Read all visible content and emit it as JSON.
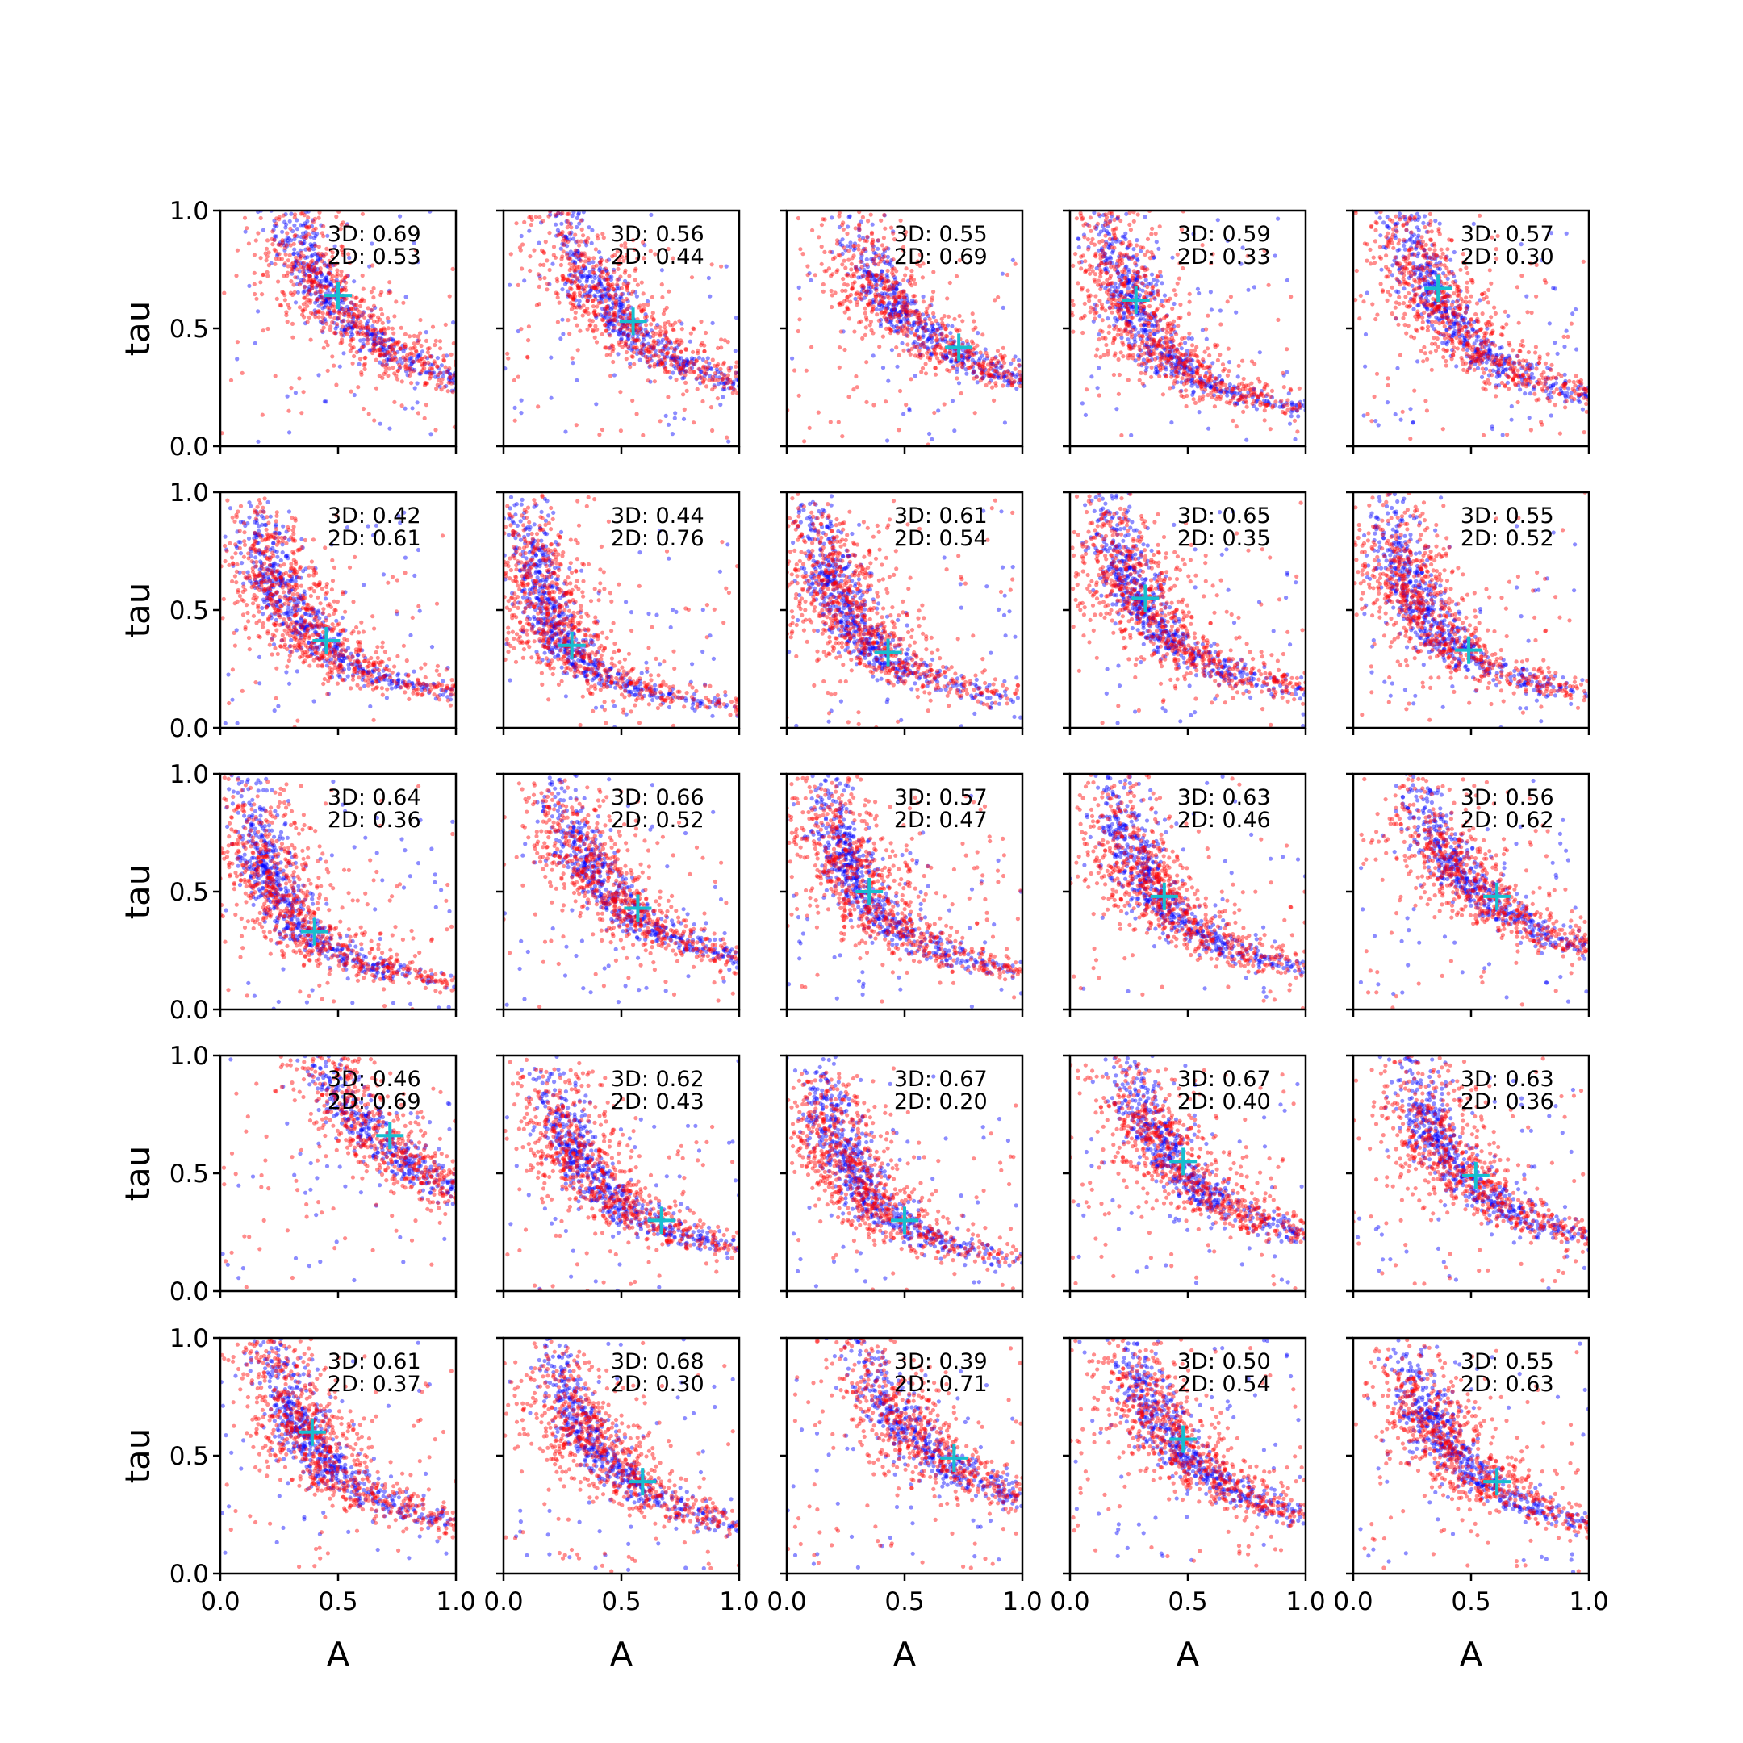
{
  "figure": {
    "grid": {
      "rows": 5,
      "cols": 5
    },
    "colors": {
      "series_3d": "#0000ff",
      "series_2d": "#ff0000",
      "marker": "#17becf",
      "axes": "#000000"
    }
  },
  "chart_data": {
    "type": "scatter",
    "xlabel": "A",
    "ylabel": "tau",
    "xlim": [
      0.0,
      1.0
    ],
    "ylim": [
      0.0,
      1.0
    ],
    "x_ticks": [
      "0.0",
      "0.5",
      "1.0"
    ],
    "y_ticks": [
      "0.0",
      "0.5",
      "1.0"
    ],
    "series_labels": [
      "3D",
      "2D"
    ],
    "marker_style": "+",
    "grid": false,
    "panels": [
      {
        "row": 0,
        "col": 0,
        "annot_3d": "3D: 0.69",
        "annot_2d": "2D: 0.53",
        "marker": [
          0.5,
          0.64
        ]
      },
      {
        "row": 0,
        "col": 1,
        "annot_3d": "3D: 0.56",
        "annot_2d": "2D: 0.44",
        "marker": [
          0.55,
          0.53
        ]
      },
      {
        "row": 0,
        "col": 2,
        "annot_3d": "3D: 0.55",
        "annot_2d": "2D: 0.69",
        "marker": [
          0.73,
          0.42
        ]
      },
      {
        "row": 0,
        "col": 3,
        "annot_3d": "3D: 0.59",
        "annot_2d": "2D: 0.33",
        "marker": [
          0.28,
          0.62
        ]
      },
      {
        "row": 0,
        "col": 4,
        "annot_3d": "3D: 0.57",
        "annot_2d": "2D: 0.30",
        "marker": [
          0.36,
          0.67
        ]
      },
      {
        "row": 1,
        "col": 0,
        "annot_3d": "3D: 0.42",
        "annot_2d": "2D: 0.61",
        "marker": [
          0.45,
          0.37
        ]
      },
      {
        "row": 1,
        "col": 1,
        "annot_3d": "3D: 0.44",
        "annot_2d": "2D: 0.76",
        "marker": [
          0.29,
          0.35
        ]
      },
      {
        "row": 1,
        "col": 2,
        "annot_3d": "3D: 0.61",
        "annot_2d": "2D: 0.54",
        "marker": [
          0.43,
          0.32
        ]
      },
      {
        "row": 1,
        "col": 3,
        "annot_3d": "3D: 0.65",
        "annot_2d": "2D: 0.35",
        "marker": [
          0.32,
          0.55
        ]
      },
      {
        "row": 1,
        "col": 4,
        "annot_3d": "3D: 0.55",
        "annot_2d": "2D: 0.52",
        "marker": [
          0.49,
          0.33
        ]
      },
      {
        "row": 2,
        "col": 0,
        "annot_3d": "3D: 0.64",
        "annot_2d": "2D: 0.36",
        "marker": [
          0.4,
          0.33
        ]
      },
      {
        "row": 2,
        "col": 1,
        "annot_3d": "3D: 0.66",
        "annot_2d": "2D: 0.52",
        "marker": [
          0.57,
          0.43
        ]
      },
      {
        "row": 2,
        "col": 2,
        "annot_3d": "3D: 0.57",
        "annot_2d": "2D: 0.47",
        "marker": [
          0.35,
          0.5
        ]
      },
      {
        "row": 2,
        "col": 3,
        "annot_3d": "3D: 0.63",
        "annot_2d": "2D: 0.46",
        "marker": [
          0.4,
          0.48
        ]
      },
      {
        "row": 2,
        "col": 4,
        "annot_3d": "3D: 0.56",
        "annot_2d": "2D: 0.62",
        "marker": [
          0.61,
          0.48
        ]
      },
      {
        "row": 3,
        "col": 0,
        "annot_3d": "3D: 0.46",
        "annot_2d": "2D: 0.69",
        "marker": [
          0.72,
          0.66
        ]
      },
      {
        "row": 3,
        "col": 1,
        "annot_3d": "3D: 0.62",
        "annot_2d": "2D: 0.43",
        "marker": [
          0.67,
          0.3
        ]
      },
      {
        "row": 3,
        "col": 2,
        "annot_3d": "3D: 0.67",
        "annot_2d": "2D: 0.20",
        "marker": [
          0.5,
          0.3
        ]
      },
      {
        "row": 3,
        "col": 3,
        "annot_3d": "3D: 0.67",
        "annot_2d": "2D: 0.40",
        "marker": [
          0.48,
          0.55
        ]
      },
      {
        "row": 3,
        "col": 4,
        "annot_3d": "3D: 0.63",
        "annot_2d": "2D: 0.36",
        "marker": [
          0.52,
          0.49
        ]
      },
      {
        "row": 4,
        "col": 0,
        "annot_3d": "3D: 0.61",
        "annot_2d": "2D: 0.37",
        "marker": [
          0.39,
          0.6
        ]
      },
      {
        "row": 4,
        "col": 1,
        "annot_3d": "3D: 0.68",
        "annot_2d": "2D: 0.30",
        "marker": [
          0.59,
          0.39
        ]
      },
      {
        "row": 4,
        "col": 2,
        "annot_3d": "3D: 0.39",
        "annot_2d": "2D: 0.71",
        "marker": [
          0.71,
          0.49
        ]
      },
      {
        "row": 4,
        "col": 3,
        "annot_3d": "3D: 0.50",
        "annot_2d": "2D: 0.54",
        "marker": [
          0.48,
          0.57
        ]
      },
      {
        "row": 4,
        "col": 4,
        "annot_3d": "3D: 0.55",
        "annot_2d": "2D: 0.63",
        "marker": [
          0.61,
          0.39
        ]
      }
    ]
  }
}
